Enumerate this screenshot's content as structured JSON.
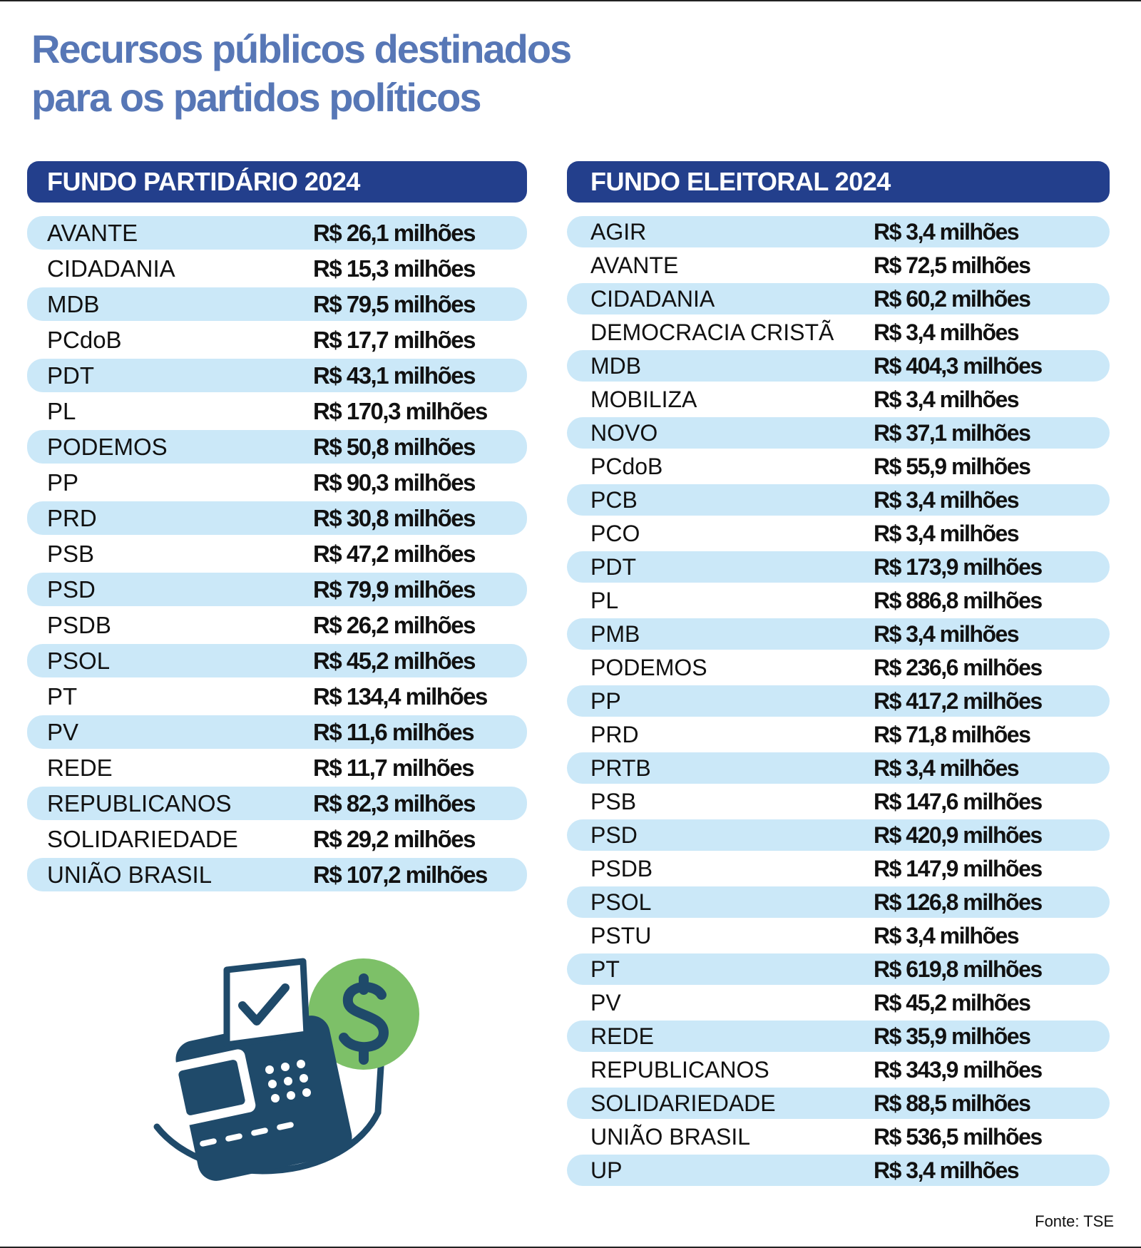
{
  "header": {
    "title_lines": [
      "Recursos públicos destinados",
      "para os partidos políticos"
    ]
  },
  "tables": [
    {
      "title": "FUNDO PARTIDÁRIO 2024",
      "rows": [
        [
          "AVANTE",
          "R$ 26,1 milhões"
        ],
        [
          "CIDADANIA",
          "R$ 15,3 milhões"
        ],
        [
          "MDB",
          "R$ 79,5 milhões"
        ],
        [
          "PCdoB",
          "R$ 17,7 milhões"
        ],
        [
          "PDT",
          "R$ 43,1 milhões"
        ],
        [
          "PL",
          "R$ 170,3 milhões"
        ],
        [
          "PODEMOS",
          "R$ 50,8 milhões"
        ],
        [
          "PP",
          "R$ 90,3 milhões"
        ],
        [
          "PRD",
          "R$ 30,8 milhões"
        ],
        [
          "PSB",
          "R$ 47,2 milhões"
        ],
        [
          "PSD",
          "R$ 79,9 milhões"
        ],
        [
          "PSDB",
          "R$ 26,2 milhões"
        ],
        [
          "PSOL",
          "R$ 45,2 milhões"
        ],
        [
          "PT",
          "R$ 134,4 milhões"
        ],
        [
          "PV",
          "R$ 11,6 milhões"
        ],
        [
          "REDE",
          "R$ 11,7 milhões"
        ],
        [
          "REPUBLICANOS",
          "R$ 82,3 milhões"
        ],
        [
          "SOLIDARIEDADE",
          "R$ 29,2 milhões"
        ],
        [
          "UNIÃO BRASIL",
          "R$ 107,2 milhões"
        ]
      ]
    },
    {
      "title": "FUNDO ELEITORAL 2024",
      "rows": [
        [
          "AGIR",
          "R$ 3,4 milhões"
        ],
        [
          "AVANTE",
          "R$ 72,5 milhões"
        ],
        [
          "CIDADANIA",
          "R$ 60,2 milhões"
        ],
        [
          "DEMOCRACIA CRISTÃ",
          "R$ 3,4 milhões"
        ],
        [
          "MDB",
          "R$ 404,3 milhões"
        ],
        [
          "MOBILIZA",
          "R$ 3,4 milhões"
        ],
        [
          "NOVO",
          "R$ 37,1 milhões"
        ],
        [
          "PCdoB",
          "R$ 55,9 milhões"
        ],
        [
          "PCB",
          "R$ 3,4 milhões"
        ],
        [
          "PCO",
          "R$ 3,4 milhões"
        ],
        [
          "PDT",
          "R$ 173,9 milhões"
        ],
        [
          "PL",
          "R$ 886,8 milhões"
        ],
        [
          "PMB",
          "R$ 3,4 milhões"
        ],
        [
          "PODEMOS",
          "R$ 236,6 milhões"
        ],
        [
          "PP",
          "R$ 417,2 milhões"
        ],
        [
          "PRD",
          "R$ 71,8 milhões"
        ],
        [
          "PRTB",
          "R$ 3,4 milhões"
        ],
        [
          "PSB",
          "R$ 147,6 milhões"
        ],
        [
          "PSD",
          "R$ 420,9 milhões"
        ],
        [
          "PSDB",
          "R$ 147,9 milhões"
        ],
        [
          "PSOL",
          "R$ 126,8 milhões"
        ],
        [
          "PSTU",
          "R$ 3,4 milhões"
        ],
        [
          "PT",
          "R$ 619,8 milhões"
        ],
        [
          "PV",
          "R$ 45,2 milhões"
        ],
        [
          "REDE",
          "R$ 35,9 milhões"
        ],
        [
          "REPUBLICANOS",
          "R$ 343,9 milhões"
        ],
        [
          "SOLIDARIEDADE",
          "R$ 88,5 milhões"
        ],
        [
          "UNIÃO BRASIL",
          "R$ 536,5 milhões"
        ],
        [
          "UP",
          "R$ 3,4 milhões"
        ]
      ]
    }
  ],
  "footer": {
    "source": "Fonte: TSE"
  }
}
